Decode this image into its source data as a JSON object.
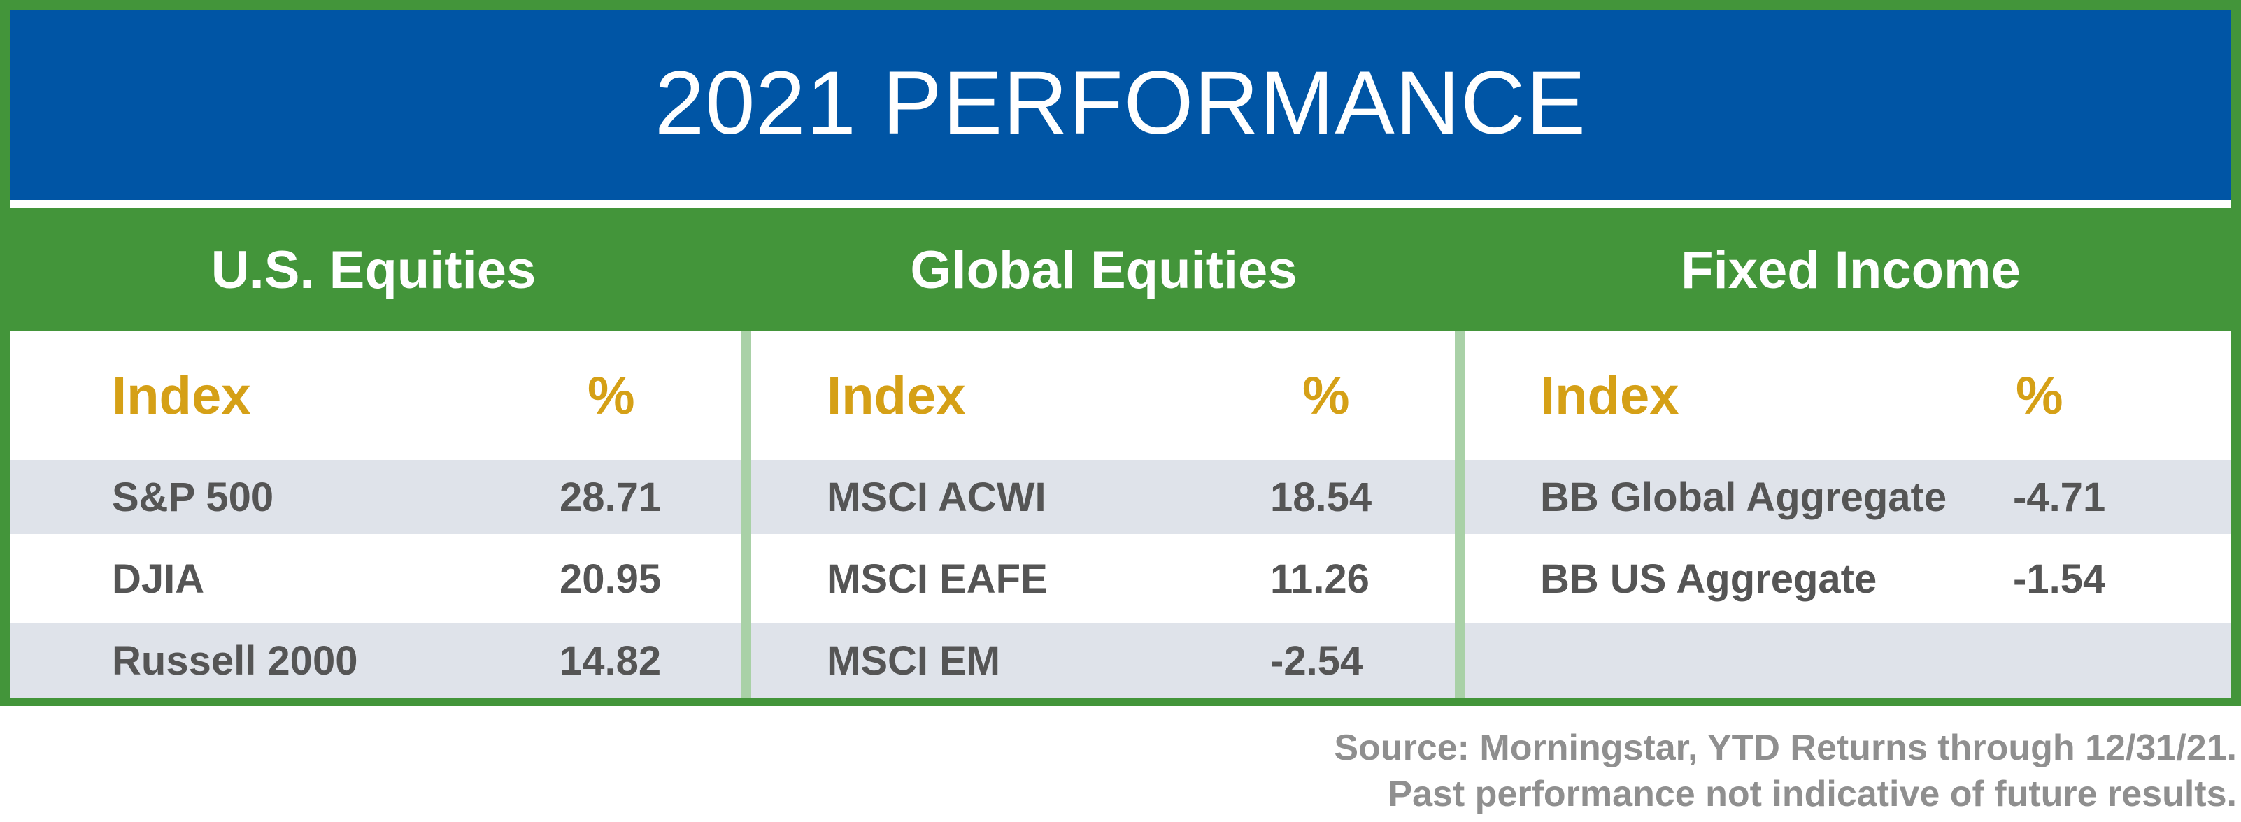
{
  "title": "2021 PERFORMANCE",
  "colors": {
    "blue": "#0055a5",
    "green": "#43953a",
    "gold": "#d5a016",
    "row_shade": "#dfe3ea",
    "text": "#555555",
    "footer": "#8f8f8f"
  },
  "columns": [
    {
      "heading": "U.S. Equities",
      "index_label": "Index",
      "pct_label": "%",
      "rows": [
        {
          "name": "S&P 500",
          "value": "28.71"
        },
        {
          "name": "DJIA",
          "value": "20.95"
        },
        {
          "name": "Russell 2000",
          "value": "14.82"
        }
      ]
    },
    {
      "heading": "Global Equities",
      "index_label": "Index",
      "pct_label": "%",
      "rows": [
        {
          "name": "MSCI ACWI",
          "value": "18.54"
        },
        {
          "name": "MSCI EAFE",
          "value": "11.26"
        },
        {
          "name": "MSCI EM",
          "value": "-2.54"
        }
      ]
    },
    {
      "heading": "Fixed Income",
      "index_label": "Index",
      "pct_label": "%",
      "rows": [
        {
          "name": "BB Global Aggregate",
          "value": "-4.71"
        },
        {
          "name": "BB US Aggregate",
          "value": "-1.54"
        },
        {
          "name": "",
          "value": ""
        }
      ]
    }
  ],
  "footer": {
    "line1": "Source: Morningstar, YTD Returns through 12/31/21.",
    "line2": "Past performance not indicative of future results."
  }
}
